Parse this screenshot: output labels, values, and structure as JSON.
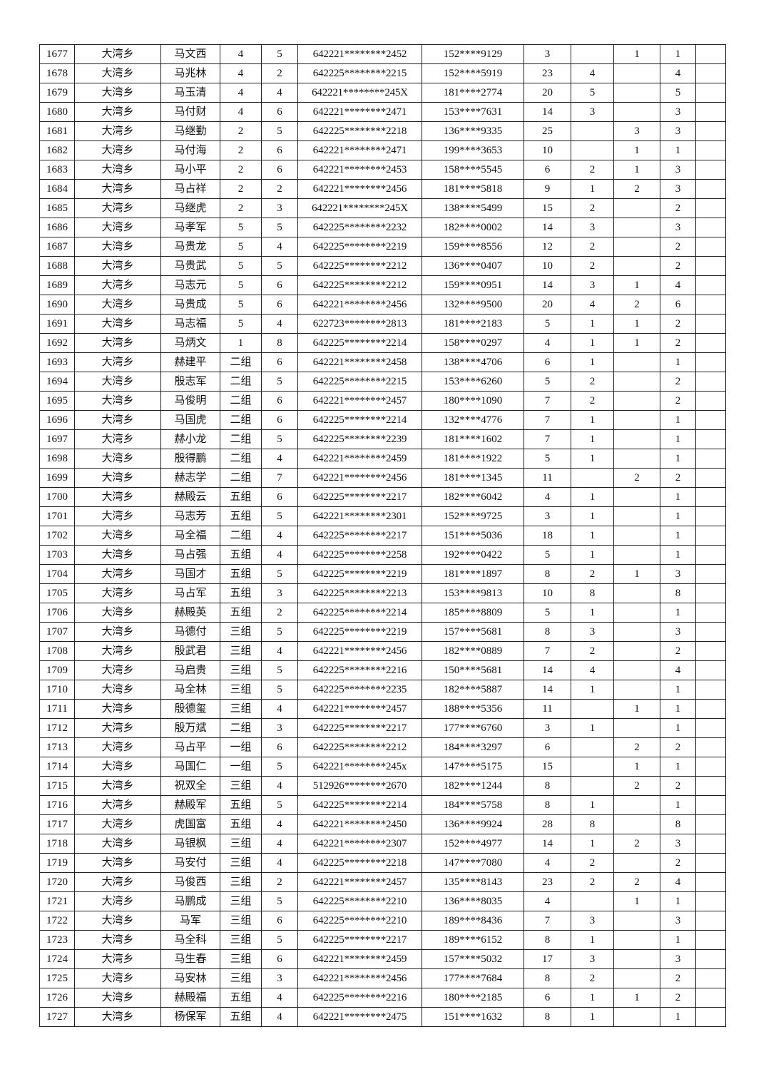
{
  "table": {
    "rows": [
      [
        "1677",
        "大湾乡",
        "马文西",
        "4",
        "5",
        "642221********2452",
        "152****9129",
        "3",
        "",
        "1",
        "1"
      ],
      [
        "1678",
        "大湾乡",
        "马兆林",
        "4",
        "2",
        "642225********2215",
        "152****5919",
        "23",
        "4",
        "",
        "4"
      ],
      [
        "1679",
        "大湾乡",
        "马玉清",
        "4",
        "4",
        "642221********245X",
        "181****2774",
        "20",
        "5",
        "",
        "5"
      ],
      [
        "1680",
        "大湾乡",
        "马付财",
        "4",
        "6",
        "642221********2471",
        "153****7631",
        "14",
        "3",
        "",
        "3"
      ],
      [
        "1681",
        "大湾乡",
        "马继勤",
        "2",
        "5",
        "642225********2218",
        "136****9335",
        "25",
        "",
        "3",
        "3"
      ],
      [
        "1682",
        "大湾乡",
        "马付海",
        "2",
        "6",
        "642221********2471",
        "199****3653",
        "10",
        "",
        "1",
        "1"
      ],
      [
        "1683",
        "大湾乡",
        "马小平",
        "2",
        "6",
        "642221********2453",
        "158****5545",
        "6",
        "2",
        "1",
        "3"
      ],
      [
        "1684",
        "大湾乡",
        "马占祥",
        "2",
        "2",
        "642221********2456",
        "181****5818",
        "9",
        "1",
        "2",
        "3"
      ],
      [
        "1685",
        "大湾乡",
        "马继虎",
        "2",
        "3",
        "642221********245X",
        "138****5499",
        "15",
        "2",
        "",
        "2"
      ],
      [
        "1686",
        "大湾乡",
        "马孝军",
        "5",
        "5",
        "642225********2232",
        "182****0002",
        "14",
        "3",
        "",
        "3"
      ],
      [
        "1687",
        "大湾乡",
        "马贵龙",
        "5",
        "4",
        "642225********2219",
        "159****8556",
        "12",
        "2",
        "",
        "2"
      ],
      [
        "1688",
        "大湾乡",
        "马贵武",
        "5",
        "5",
        "642225********2212",
        "136****0407",
        "10",
        "2",
        "",
        "2"
      ],
      [
        "1689",
        "大湾乡",
        "马志元",
        "5",
        "6",
        "642225********2212",
        "159****0951",
        "14",
        "3",
        "1",
        "4"
      ],
      [
        "1690",
        "大湾乡",
        "马贵成",
        "5",
        "6",
        "642221********2456",
        "132****9500",
        "20",
        "4",
        "2",
        "6"
      ],
      [
        "1691",
        "大湾乡",
        "马志福",
        "5",
        "4",
        "622723********2813",
        "181****2183",
        "5",
        "1",
        "1",
        "2"
      ],
      [
        "1692",
        "大湾乡",
        "马炳文",
        "1",
        "8",
        "642225********2214",
        "158****0297",
        "4",
        "1",
        "1",
        "2"
      ],
      [
        "1693",
        "大湾乡",
        "赫建平",
        "二组",
        "6",
        "642221********2458",
        "138****4706",
        "6",
        "1",
        "",
        "1"
      ],
      [
        "1694",
        "大湾乡",
        "殷志军",
        "二组",
        "5",
        "642225********2215",
        "153****6260",
        "5",
        "2",
        "",
        "2"
      ],
      [
        "1695",
        "大湾乡",
        "马俊明",
        "二组",
        "6",
        "642221********2457",
        "180****1090",
        "7",
        "2",
        "",
        "2"
      ],
      [
        "1696",
        "大湾乡",
        "马国虎",
        "二组",
        "6",
        "642225********2214",
        "132****4776",
        "7",
        "1",
        "",
        "1"
      ],
      [
        "1697",
        "大湾乡",
        "赫小龙",
        "二组",
        "5",
        "642225********2239",
        "181****1602",
        "7",
        "1",
        "",
        "1"
      ],
      [
        "1698",
        "大湾乡",
        "殷得鹏",
        "二组",
        "4",
        "642221********2459",
        "181****1922",
        "5",
        "1",
        "",
        "1"
      ],
      [
        "1699",
        "大湾乡",
        "赫志学",
        "二组",
        "7",
        "642221********2456",
        "181****1345",
        "11",
        "",
        "2",
        "2"
      ],
      [
        "1700",
        "大湾乡",
        "赫殿云",
        "五组",
        "6",
        "642225********2217",
        "182****6042",
        "4",
        "1",
        "",
        "1"
      ],
      [
        "1701",
        "大湾乡",
        "马志芳",
        "五组",
        "5",
        "642221********2301",
        "152****9725",
        "3",
        "1",
        "",
        "1"
      ],
      [
        "1702",
        "大湾乡",
        "马全福",
        "二组",
        "4",
        "642225********2217",
        "151****5036",
        "18",
        "1",
        "",
        "1"
      ],
      [
        "1703",
        "大湾乡",
        "马占强",
        "五组",
        "4",
        "642225********2258",
        "192****0422",
        "5",
        "1",
        "",
        "1"
      ],
      [
        "1704",
        "大湾乡",
        "马国才",
        "五组",
        "5",
        "642225********2219",
        "181****1897",
        "8",
        "2",
        "1",
        "3"
      ],
      [
        "1705",
        "大湾乡",
        "马占军",
        "五组",
        "3",
        "642225********2213",
        "153****9813",
        "10",
        "8",
        "",
        "8"
      ],
      [
        "1706",
        "大湾乡",
        "赫殿英",
        "五组",
        "2",
        "642225********2214",
        "185****8809",
        "5",
        "1",
        "",
        "1"
      ],
      [
        "1707",
        "大湾乡",
        "马德付",
        "三组",
        "5",
        "642225********2219",
        "157****5681",
        "8",
        "3",
        "",
        "3"
      ],
      [
        "1708",
        "大湾乡",
        "殷武君",
        "三组",
        "4",
        "642221********2456",
        "182****0889",
        "7",
        "2",
        "",
        "2"
      ],
      [
        "1709",
        "大湾乡",
        "马启贵",
        "三组",
        "5",
        "642225********2216",
        "150****5681",
        "14",
        "4",
        "",
        "4"
      ],
      [
        "1710",
        "大湾乡",
        "马全林",
        "三组",
        "5",
        "642225********2235",
        "182****5887",
        "14",
        "1",
        "",
        "1"
      ],
      [
        "1711",
        "大湾乡",
        "殷德玺",
        "三组",
        "4",
        "642221********2457",
        "188****5356",
        "11",
        "",
        "1",
        "1"
      ],
      [
        "1712",
        "大湾乡",
        "殷万斌",
        "二组",
        "3",
        "642225********2217",
        "177****6760",
        "3",
        "1",
        "",
        "1"
      ],
      [
        "1713",
        "大湾乡",
        "马占平",
        "一组",
        "6",
        "642225********2212",
        "184****3297",
        "6",
        "",
        "2",
        "2"
      ],
      [
        "1714",
        "大湾乡",
        "马国仁",
        "一组",
        "5",
        "642221********245x",
        "147****5175",
        "15",
        "",
        "1",
        "1"
      ],
      [
        "1715",
        "大湾乡",
        "祝双全",
        "三组",
        "4",
        "512926********2670",
        "182****1244",
        "8",
        "",
        "2",
        "2"
      ],
      [
        "1716",
        "大湾乡",
        "赫殿军",
        "五组",
        "5",
        "642225********2214",
        "184****5758",
        "8",
        "1",
        "",
        "1"
      ],
      [
        "1717",
        "大湾乡",
        "虎国富",
        "五组",
        "4",
        "642221********2450",
        "136****9924",
        "28",
        "8",
        "",
        "8"
      ],
      [
        "1718",
        "大湾乡",
        "马银枫",
        "三组",
        "4",
        "642221********2307",
        "152****4977",
        "14",
        "1",
        "2",
        "3"
      ],
      [
        "1719",
        "大湾乡",
        "马安付",
        "三组",
        "4",
        "642225********2218",
        "147****7080",
        "4",
        "2",
        "",
        "2"
      ],
      [
        "1720",
        "大湾乡",
        "马俊西",
        "三组",
        "2",
        "642221********2457",
        "135****8143",
        "23",
        "2",
        "2",
        "4"
      ],
      [
        "1721",
        "大湾乡",
        "马鹏成",
        "三组",
        "5",
        "642225********2210",
        "136****8035",
        "4",
        "",
        "1",
        "1"
      ],
      [
        "1722",
        "大湾乡",
        "马军",
        "三组",
        "6",
        "642225********2210",
        "189****8436",
        "7",
        "3",
        "",
        "3"
      ],
      [
        "1723",
        "大湾乡",
        "马全科",
        "三组",
        "5",
        "642225********2217",
        "189****6152",
        "8",
        "1",
        "",
        "1"
      ],
      [
        "1724",
        "大湾乡",
        "马生春",
        "三组",
        "6",
        "642221********2459",
        "157****5032",
        "17",
        "3",
        "",
        "3"
      ],
      [
        "1725",
        "大湾乡",
        "马安林",
        "三组",
        "3",
        "642221********2456",
        "177****7684",
        "8",
        "2",
        "",
        "2"
      ],
      [
        "1726",
        "大湾乡",
        "赫殿福",
        "五组",
        "4",
        "642225********2216",
        "180****2185",
        "6",
        "1",
        "1",
        "2"
      ],
      [
        "1727",
        "大湾乡",
        "杨保军",
        "五组",
        "4",
        "642221********2475",
        "151****1632",
        "8",
        "1",
        "",
        "1"
      ]
    ]
  }
}
